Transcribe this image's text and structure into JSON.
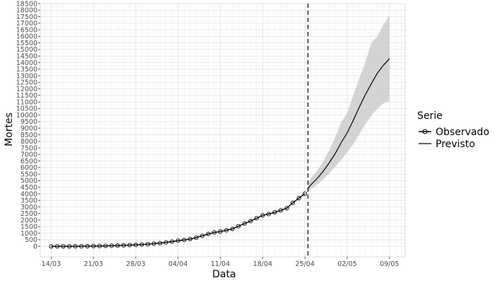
{
  "chart_data": {
    "type": "line",
    "xlabel": "Data",
    "ylabel": "Mortes",
    "x_tick_labels": [
      "14/03",
      "21/03",
      "28/03",
      "04/04",
      "11/04",
      "18/04",
      "25/04",
      "02/05",
      "09/05"
    ],
    "x_tick_days": [
      0,
      7,
      14,
      21,
      28,
      35,
      42,
      49,
      56
    ],
    "ylim": [
      -800,
      18500
    ],
    "y_ticks": [
      0,
      500,
      1000,
      1500,
      2000,
      2500,
      3000,
      3500,
      4000,
      4500,
      5000,
      5500,
      6000,
      6500,
      7000,
      7500,
      8000,
      8500,
      9000,
      9500,
      10000,
      10500,
      11000,
      11500,
      12000,
      12500,
      13000,
      13500,
      14000,
      14500,
      15000,
      15500,
      16000,
      16500,
      17000,
      17500,
      18000,
      18500
    ],
    "vline_day": 42.5,
    "grid": true,
    "legend": {
      "title": "Serie",
      "position": "right",
      "entries": [
        "Observado",
        "Previsto"
      ]
    },
    "series": [
      {
        "name": "Observado",
        "marker": "open-circle",
        "x_days": [
          0,
          1,
          2,
          3,
          4,
          5,
          6,
          7,
          8,
          9,
          10,
          11,
          12,
          13,
          14,
          15,
          16,
          17,
          18,
          19,
          20,
          21,
          22,
          23,
          24,
          25,
          26,
          27,
          28,
          29,
          30,
          31,
          32,
          33,
          34,
          35,
          36,
          37,
          38,
          39,
          40,
          41,
          42
        ],
        "values": [
          0,
          0,
          0,
          0,
          3,
          6,
          10,
          18,
          25,
          34,
          46,
          57,
          77,
          92,
          111,
          136,
          159,
          201,
          240,
          299,
          359,
          432,
          486,
          553,
          667,
          800,
          941,
          1057,
          1124,
          1223,
          1328,
          1532,
          1736,
          1924,
          2141,
          2361,
          2462,
          2588,
          2741,
          2906,
          3313,
          3670,
          4016
        ]
      },
      {
        "name": "Previsto",
        "x_days": [
          42.5,
          43,
          44,
          45,
          46,
          47,
          48,
          49,
          50,
          51,
          52,
          53,
          54,
          55,
          56
        ],
        "values": [
          4400,
          4700,
          5150,
          5700,
          6350,
          7050,
          7900,
          8650,
          9600,
          10600,
          11550,
          12400,
          13200,
          13800,
          14300
        ],
        "lower": [
          4100,
          4350,
          4700,
          5100,
          5550,
          6050,
          6600,
          7150,
          7800,
          8550,
          9300,
          9950,
          10500,
          10900,
          11100
        ],
        "upper": [
          4750,
          5200,
          5750,
          6450,
          7300,
          8300,
          9450,
          10150,
          11500,
          12800,
          14000,
          15500,
          16000,
          16900,
          17600
        ]
      }
    ]
  }
}
